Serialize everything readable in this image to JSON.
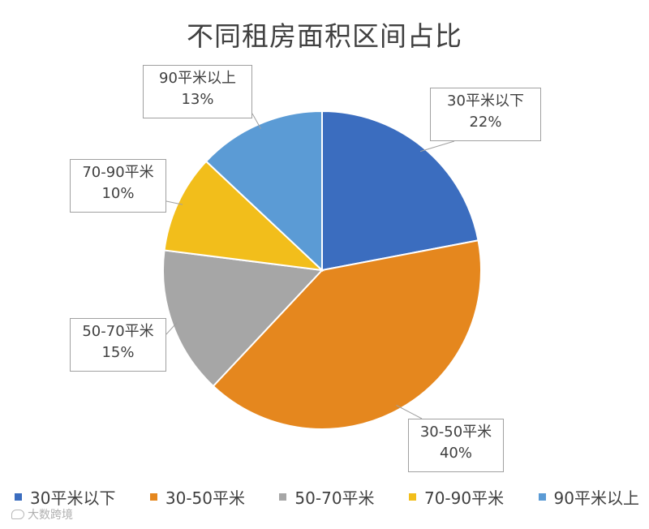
{
  "chart_data": {
    "type": "pie",
    "title": "不同租房面积区间占比",
    "categories": [
      "30平米以下",
      "30-50平米",
      "50-70平米",
      "70-90平米",
      "90平米以上"
    ],
    "values": [
      22,
      40,
      15,
      10,
      13
    ],
    "value_labels": [
      "22%",
      "40%",
      "15%",
      "10%",
      "13%"
    ],
    "colors": [
      "#3b6dbf",
      "#e5871e",
      "#a6a6a6",
      "#f2be1b",
      "#5b9bd5"
    ],
    "start_angle_deg": 0,
    "direction": "clockwise",
    "legend_position": "bottom"
  },
  "watermark": {
    "text": "大数跨境"
  }
}
